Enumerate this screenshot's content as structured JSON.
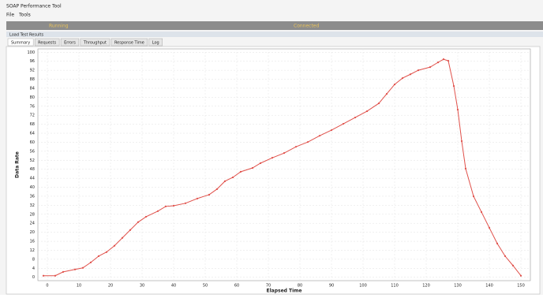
{
  "window": {
    "title": "SOAP Performance Tool",
    "menu": [
      "File",
      "Tools"
    ]
  },
  "toolbar": {
    "labels": [
      "Running",
      "Connected"
    ]
  },
  "panel": {
    "title": "Load Test Results",
    "tabs": [
      "Summary",
      "Requests",
      "Errors",
      "Throughput",
      "Response Time",
      "Log"
    ]
  },
  "chart_data": {
    "type": "line",
    "x_label": "Elapsed Time",
    "y_label": "Data Rate",
    "color": "#e0504a",
    "markers": true,
    "grid": true,
    "xlim": [
      -3,
      153
    ],
    "xticks": [
      0,
      10,
      20,
      30,
      40,
      50,
      60,
      70,
      80,
      90,
      100,
      110,
      120,
      130,
      140,
      150
    ],
    "ylim": [
      -1.5,
      101.5
    ],
    "yticks": [
      0,
      4,
      8,
      12,
      16,
      20,
      24,
      28,
      32,
      36,
      40,
      44,
      48,
      52,
      56,
      60,
      64,
      68,
      72,
      76,
      80,
      84,
      88,
      92,
      96,
      100
    ],
    "x": [
      -1.25,
      2.5,
      5,
      8.75,
      11.25,
      13.75,
      16.25,
      18.75,
      21.25,
      23.75,
      26.25,
      28.75,
      31.25,
      35,
      37.5,
      40,
      43.75,
      47.5,
      51.25,
      53.75,
      56.25,
      58.75,
      61.25,
      65,
      67.5,
      71.25,
      75,
      78.75,
      82.5,
      86.25,
      90,
      93.75,
      97.5,
      101.25,
      105,
      107.5,
      110,
      112.5,
      115,
      117.5,
      121.25,
      123.75,
      125.5,
      127,
      128.75,
      130,
      131.25,
      132.5,
      135,
      137.5,
      140,
      142.5,
      145,
      147.5,
      150
    ],
    "values": [
      0.7,
      0.7,
      2.4,
      3.5,
      4.2,
      6.6,
      9.4,
      11.2,
      14.0,
      17.5,
      21.0,
      24.5,
      26.9,
      29.4,
      31.5,
      31.8,
      32.9,
      35.0,
      36.7,
      39.2,
      42.7,
      44.4,
      46.9,
      48.6,
      50.7,
      53.1,
      55.2,
      58.0,
      60.1,
      62.9,
      65.4,
      68.2,
      71.0,
      73.8,
      77.3,
      81.5,
      85.7,
      88.5,
      90.2,
      92.0,
      93.4,
      95.5,
      96.9,
      96.2,
      85.0,
      74.5,
      60.5,
      48.3,
      36.0,
      29.0,
      22.0,
      15.0,
      9.4,
      5.2,
      0.7
    ]
  }
}
